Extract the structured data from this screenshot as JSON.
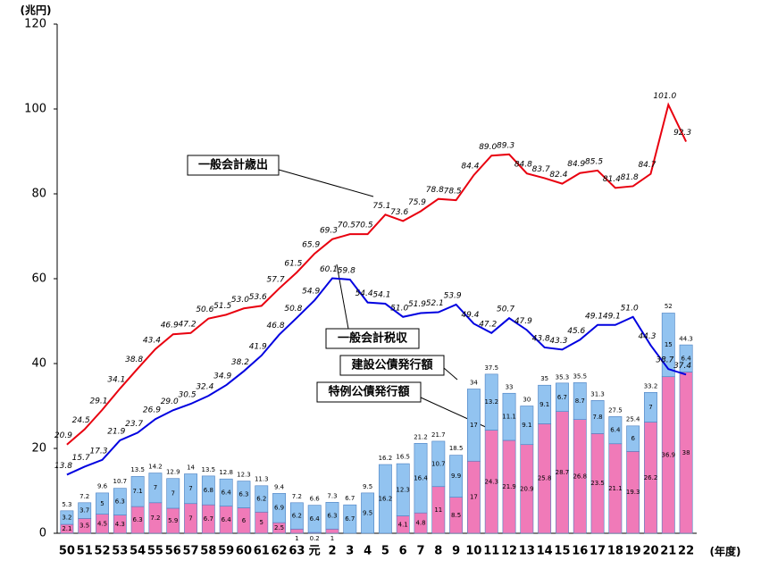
{
  "chart_data": {
    "type": "bar-line",
    "y_unit": "(兆円)",
    "x_unit": "(年度)",
    "categories": [
      "50",
      "51",
      "52",
      "53",
      "54",
      "55",
      "56",
      "57",
      "58",
      "59",
      "60",
      "61",
      "62",
      "63",
      "元",
      "2",
      "3",
      "4",
      "5",
      "6",
      "7",
      "8",
      "9",
      "10",
      "11",
      "12",
      "13",
      "14",
      "15",
      "16",
      "17",
      "18",
      "19",
      "20",
      "21",
      "22"
    ],
    "ylim": [
      0,
      120
    ],
    "yticks": [
      0,
      20,
      40,
      60,
      80,
      100,
      120
    ],
    "bar_series": [
      {
        "name": "特例公債発行額",
        "color": "#f07ab8",
        "values": [
          2.1,
          3.5,
          4.5,
          4.3,
          6.3,
          7.2,
          5.9,
          7.0,
          6.7,
          6.4,
          6.0,
          5.0,
          2.5,
          1.0,
          0.2,
          1.0,
          null,
          null,
          null,
          4.1,
          4.8,
          11.0,
          8.5,
          17.0,
          24.3,
          21.9,
          20.9,
          25.8,
          28.7,
          26.8,
          23.5,
          21.1,
          19.3,
          26.2,
          36.9,
          38.0
        ]
      },
      {
        "name": "建設公債発行額",
        "color": "#92c3f0",
        "values": [
          3.2,
          3.7,
          5.0,
          6.3,
          7.1,
          7.0,
          7.0,
          7.0,
          6.8,
          6.4,
          6.3,
          6.2,
          6.9,
          6.2,
          6.4,
          6.3,
          6.7,
          9.5,
          16.2,
          12.3,
          16.4,
          10.7,
          9.9,
          17.0,
          13.2,
          11.1,
          9.1,
          9.1,
          6.7,
          8.7,
          7.8,
          6.4,
          6.0,
          7.0,
          15.0,
          6.4
        ]
      }
    ],
    "totals": [
      5.3,
      7.2,
      9.6,
      10.7,
      13.5,
      14.2,
      12.9,
      14.0,
      13.5,
      12.8,
      12.3,
      11.3,
      9.4,
      7.2,
      6.6,
      7.3,
      6.7,
      9.5,
      16.2,
      16.5,
      21.2,
      21.7,
      18.5,
      34.0,
      37.5,
      33.0,
      30.0,
      35.0,
      35.3,
      35.5,
      31.3,
      27.5,
      25.4,
      33.2,
      52.0,
      44.3
    ],
    "line_series": [
      {
        "name": "一般会計歳出",
        "color": "#e8000f",
        "values": [
          20.9,
          24.5,
          29.1,
          34.1,
          38.8,
          43.4,
          46.9,
          47.2,
          50.6,
          51.5,
          53.0,
          53.6,
          57.7,
          61.5,
          65.9,
          69.3,
          70.5,
          70.5,
          75.1,
          73.6,
          75.9,
          78.8,
          78.5,
          84.4,
          89.0,
          89.3,
          84.8,
          83.7,
          82.4,
          84.9,
          85.5,
          81.4,
          81.8,
          84.7,
          101.0,
          92.3
        ],
        "value_labels": [
          "20.9",
          "24.5",
          "29.1",
          "34.1",
          "38.8",
          "43.4",
          "46.9",
          "47.2",
          "50.6",
          "51.5",
          "53.0",
          "53.6",
          "57.7",
          "61.5",
          "65.9",
          "69.3",
          "70.5",
          "70.5",
          "75.1",
          "73.6",
          "75.9",
          "78.8",
          "78.5",
          "84.4",
          "89.0",
          "89.3",
          "84.8",
          "83.7",
          "82.4",
          "84.9",
          "85.5",
          "81.4",
          "81.8",
          "84.7",
          "101.0",
          "92.3"
        ]
      },
      {
        "name": "一般会計税収",
        "color": "#0000e0",
        "values": [
          13.8,
          15.7,
          17.3,
          21.9,
          23.7,
          26.9,
          29.0,
          30.5,
          32.4,
          34.9,
          38.2,
          41.9,
          46.8,
          50.8,
          54.9,
          60.1,
          59.8,
          54.4,
          54.1,
          51.0,
          51.9,
          52.1,
          53.9,
          49.4,
          47.2,
          50.7,
          47.9,
          43.8,
          43.3,
          45.6,
          49.1,
          49.1,
          51.0,
          44.3,
          38.7,
          37.4
        ],
        "value_labels": [
          "13.8",
          "15.7",
          "17.3",
          "21.9",
          "23.7",
          "26.9",
          "29.0",
          "30.5",
          "32.4",
          "34.9",
          "38.2",
          "41.9",
          "46.8",
          "50.8",
          "54.9",
          "60.1",
          "59.8",
          "54.4",
          "54.1",
          "51.0",
          "51.9",
          "52.1",
          "53.9",
          "49.4",
          "47.2",
          "50.7",
          "47.9",
          "43.8",
          "43.3",
          "45.6",
          "49.1",
          "49.1",
          "51.0",
          "44.3",
          "38.7",
          "37.4"
        ]
      }
    ]
  }
}
